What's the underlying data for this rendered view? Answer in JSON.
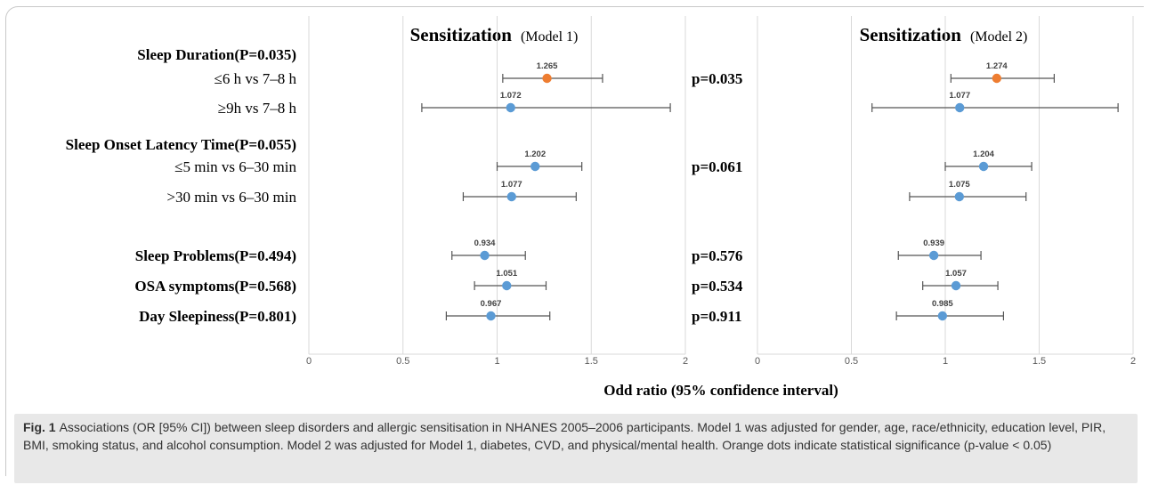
{
  "chart_data": [
    {
      "type": "forest",
      "title": "Sensitization",
      "subtitle": "(Model 1)",
      "xlabel": "Odd ratio (95% confidence interval)",
      "xlim": [
        0,
        2
      ],
      "xticks": [
        "0",
        "0.5",
        "1",
        "1.5",
        "2"
      ],
      "grid": true,
      "categories": [
        {
          "label": "Sleep Duration(P=0.035)",
          "bold": true
        },
        {
          "label": "≤6 h vs 7–8 h",
          "bold": false
        },
        {
          "label": "≥9h vs 7–8 h",
          "bold": false
        },
        {
          "label": "Sleep Onset Latency Time(P=0.055)",
          "bold": true
        },
        {
          "label": "≤5 min vs 6–30 min",
          "bold": false
        },
        {
          "label": ">30 min vs 6–30 min",
          "bold": false
        },
        {
          "label": "Sleep Problems(P=0.494)",
          "bold": true
        },
        {
          "label": "OSA symptoms(P=0.568)",
          "bold": true
        },
        {
          "label": "Day Sleepiness(P=0.801)",
          "bold": true
        }
      ],
      "points": [
        {
          "row": "≤6 h vs 7–8 h",
          "or": 1.265,
          "label": "1.265",
          "lower": 1.03,
          "upper": 1.56,
          "significant": true
        },
        {
          "row": "≥9h vs 7–8 h",
          "or": 1.072,
          "label": "1.072",
          "lower": 0.6,
          "upper": 1.92,
          "significant": false
        },
        {
          "row": "≤5 min vs 6–30 min",
          "or": 1.202,
          "label": "1.202",
          "lower": 1.0,
          "upper": 1.45,
          "significant": false
        },
        {
          "row": ">30 min vs 6–30 min",
          "or": 1.077,
          "label": "1.077",
          "lower": 0.82,
          "upper": 1.42,
          "significant": false
        },
        {
          "row": "Sleep Problems(P=0.494)",
          "or": 0.934,
          "label": "0.934",
          "lower": 0.76,
          "upper": 1.15,
          "significant": false
        },
        {
          "row": "OSA symptoms(P=0.568)",
          "or": 1.051,
          "label": "1.051",
          "lower": 0.88,
          "upper": 1.26,
          "significant": false
        },
        {
          "row": "Day Sleepiness(P=0.801)",
          "or": 0.967,
          "label": "0.967",
          "lower": 0.73,
          "upper": 1.28,
          "significant": false
        }
      ]
    },
    {
      "type": "forest",
      "title": "Sensitization",
      "subtitle": "(Model 2)",
      "xlabel": "Odd ratio (95% confidence interval)",
      "xlim": [
        0,
        2
      ],
      "xticks": [
        "0",
        "0.5",
        "1",
        "1.5",
        "2"
      ],
      "grid": true,
      "pvalue_labels": [
        {
          "row": "≤6 h vs 7–8 h",
          "text": "p=0.035"
        },
        {
          "row": "≤5 min vs 6–30 min",
          "text": "p=0.061"
        },
        {
          "row": "Sleep Problems(P=0.494)",
          "text": "p=0.576"
        },
        {
          "row": "OSA symptoms(P=0.568)",
          "text": "p=0.534"
        },
        {
          "row": "Day Sleepiness(P=0.801)",
          "text": "p=0.911"
        }
      ],
      "points": [
        {
          "row": "≤6 h vs 7–8 h",
          "or": 1.274,
          "label": "1.274",
          "lower": 1.03,
          "upper": 1.58,
          "significant": true
        },
        {
          "row": "≥9h vs 7–8 h",
          "or": 1.077,
          "label": "1.077",
          "lower": 0.61,
          "upper": 1.92,
          "significant": false
        },
        {
          "row": "≤5 min vs 6–30 min",
          "or": 1.204,
          "label": "1.204",
          "lower": 1.0,
          "upper": 1.46,
          "significant": false
        },
        {
          "row": ">30 min vs 6–30 min",
          "or": 1.075,
          "label": "1.075",
          "lower": 0.81,
          "upper": 1.43,
          "significant": false
        },
        {
          "row": "Sleep Problems(P=0.494)",
          "or": 0.939,
          "label": "0.939",
          "lower": 0.75,
          "upper": 1.19,
          "significant": false
        },
        {
          "row": "OSA symptoms(P=0.568)",
          "or": 1.057,
          "label": "1.057",
          "lower": 0.88,
          "upper": 1.28,
          "significant": false
        },
        {
          "row": "Day Sleepiness(P=0.801)",
          "or": 0.985,
          "label": "0.985",
          "lower": 0.74,
          "upper": 1.31,
          "significant": false
        }
      ]
    }
  ],
  "colors": {
    "significant_dot": "#ee7d31",
    "default_dot": "#5b9bd5",
    "ci_line": "#555555",
    "gridline": "#d9d9d9"
  },
  "caption": {
    "label": "Fig. 1",
    "text": "Associations (OR [95% CI]) between sleep disorders and allergic sensitisation in NHANES 2005–2006 participants. Model 1 was adjusted for gender, age, race/ethnicity, education level, PIR, BMI, smoking status, and alcohol consumption. Model 2 was adjusted for Model 1, diabetes, CVD, and physical/mental health. Orange dots indicate statistical significance (p-value < 0.05)"
  }
}
